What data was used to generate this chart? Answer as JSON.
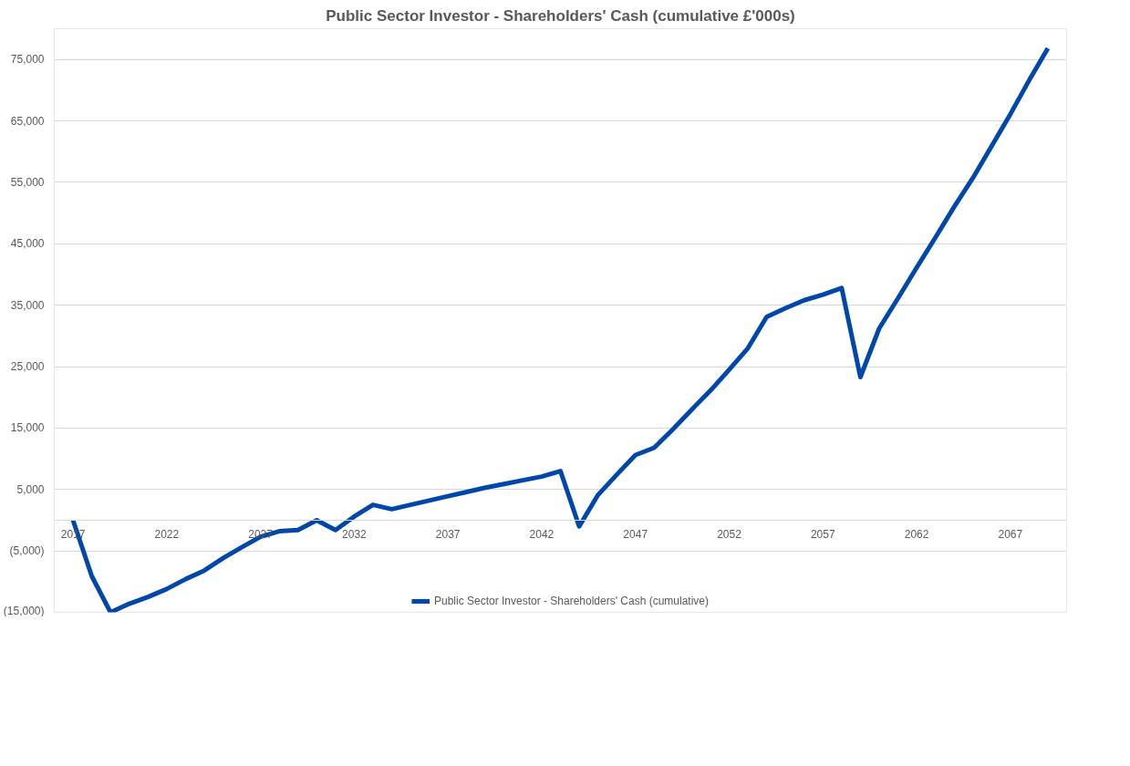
{
  "chart_data": {
    "type": "line",
    "title": "Public Sector Investor - Shareholders' Cash (cumulative £'000s)",
    "x": [
      2017,
      2018,
      2019,
      2020,
      2021,
      2022,
      2023,
      2024,
      2025,
      2026,
      2027,
      2028,
      2029,
      2030,
      2031,
      2032,
      2033,
      2034,
      2035,
      2036,
      2037,
      2038,
      2039,
      2040,
      2041,
      2042,
      2043,
      2044,
      2045,
      2046,
      2047,
      2048,
      2049,
      2050,
      2051,
      2052,
      2053,
      2054,
      2055,
      2056,
      2057,
      2058,
      2059,
      2060,
      2061,
      2062,
      2063,
      2064,
      2065,
      2066,
      2067,
      2068,
      2069
    ],
    "series": [
      {
        "name": "Public Sector Investor - Shareholders' Cash (cumulative)",
        "color": "#0047ab",
        "values": [
          0,
          -9100,
          -15000,
          -13600,
          -12500,
          -11200,
          -9600,
          -8200,
          -6200,
          -4400,
          -2700,
          -1800,
          -1600,
          0,
          -1600,
          600,
          2500,
          1800,
          2500,
          3200,
          3900,
          4600,
          5300,
          5900,
          6500,
          7100,
          8000,
          -1000,
          4100,
          7400,
          10600,
          11800,
          14800,
          18000,
          21100,
          24500,
          28000,
          33100,
          34500,
          35800,
          36700,
          37800,
          23300,
          31200,
          36100,
          41100,
          46000,
          51000,
          55700,
          60900,
          66100,
          71600,
          76800
        ]
      }
    ],
    "xlim": [
      2016,
      2070
    ],
    "xticks": [
      2017,
      2022,
      2027,
      2032,
      2037,
      2042,
      2047,
      2052,
      2057,
      2062,
      2067
    ],
    "ylim": [
      -15000,
      80000
    ],
    "yticks": [
      {
        "value": -15000,
        "label": "(15,000)"
      },
      {
        "value": -5000,
        "label": "(5,000)"
      },
      {
        "value": 5000,
        "label": "5,000"
      },
      {
        "value": 15000,
        "label": "15,000"
      },
      {
        "value": 25000,
        "label": "25,000"
      },
      {
        "value": 35000,
        "label": "35,000"
      },
      {
        "value": 45000,
        "label": "45,000"
      },
      {
        "value": 55000,
        "label": "55,000"
      },
      {
        "value": 65000,
        "label": "65,000"
      },
      {
        "value": 75000,
        "label": "75,000"
      }
    ],
    "grid": "y",
    "legend": "bottom",
    "marker": "none",
    "line_style": "solid"
  }
}
